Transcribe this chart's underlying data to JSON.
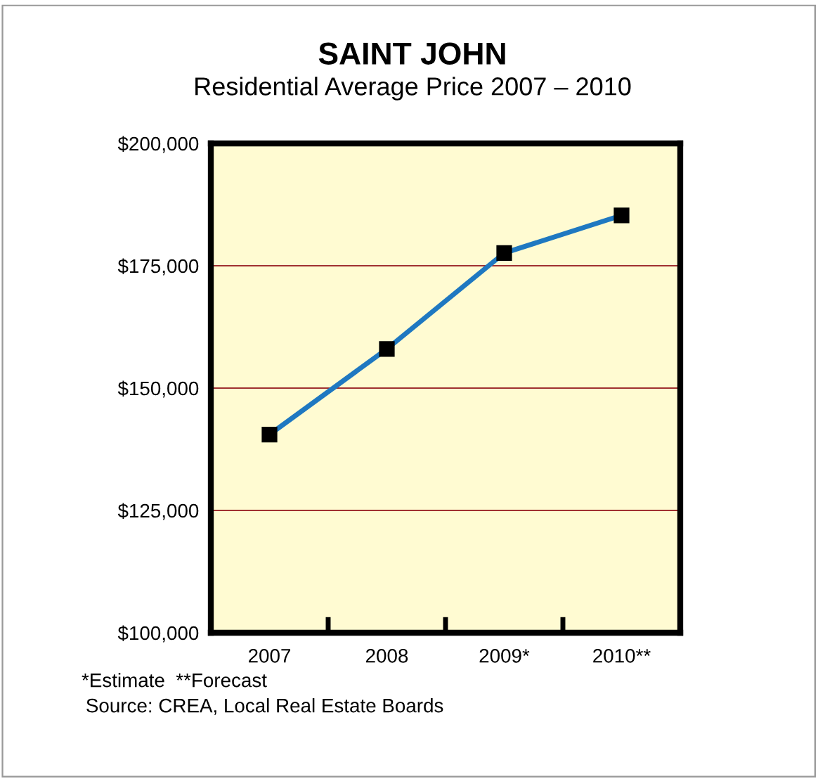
{
  "chart_data": {
    "type": "line",
    "title": "SAINT JOHN",
    "subtitle": "Residential Average Price 2007 – 2010",
    "categories": [
      "2007",
      "2008",
      "2009*",
      "2010**"
    ],
    "series": [
      {
        "color": "#1f78c1",
        "values": [
          140500,
          158000,
          177600,
          185300
        ]
      }
    ],
    "ylim": [
      100000,
      200000
    ],
    "yticks": [
      {
        "value": 100000,
        "label": "$100,000"
      },
      {
        "value": 125000,
        "label": "$125,000"
      },
      {
        "value": 150000,
        "label": "$150,000"
      },
      {
        "value": 175000,
        "label": "$175,000"
      },
      {
        "value": 200000,
        "label": "$200,000"
      }
    ],
    "grid": "y",
    "marker": "square",
    "line_style": "solid",
    "legend": false,
    "annotations": [
      "*Estimate  **Forecast",
      "Source: CREA, Local Real Estate Boards"
    ]
  }
}
